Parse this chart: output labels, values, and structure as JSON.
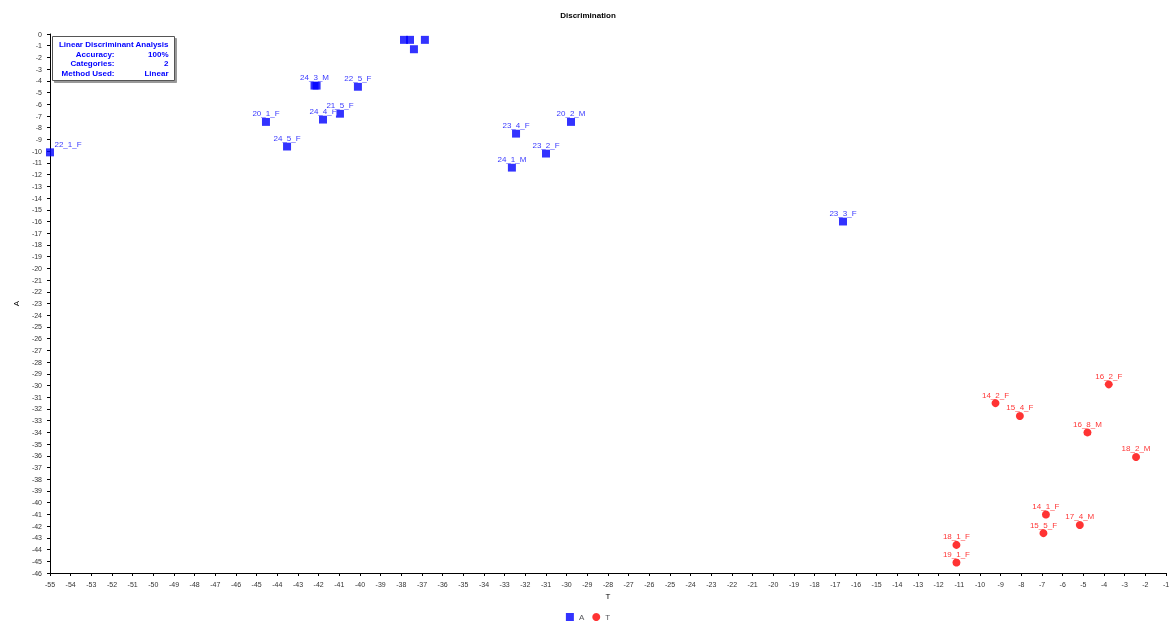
{
  "chart_data": {
    "type": "scatter",
    "title": "Discrimination",
    "xlabel": "T",
    "ylabel": "A",
    "xlim": [
      -55,
      -1
    ],
    "ylim": [
      -46,
      0
    ],
    "xticks": [
      -55,
      -54,
      -53,
      -52,
      -51,
      -50,
      -49,
      -48,
      -47,
      -46,
      -45,
      -44,
      -43,
      -42,
      -41,
      -40,
      -39,
      -38,
      -37,
      -36,
      -35,
      -34,
      -33,
      -32,
      -31,
      -30,
      -29,
      -28,
      -27,
      -26,
      -25,
      -24,
      -23,
      -22,
      -21,
      -20,
      -19,
      -18,
      -17,
      -16,
      -15,
      -14,
      -13,
      -12,
      -11,
      -10,
      -9,
      -8,
      -7,
      -6,
      -5,
      -4,
      -3,
      -2,
      -1
    ],
    "yticks": [
      0,
      -1,
      -2,
      -3,
      -4,
      -5,
      -6,
      -7,
      -8,
      -9,
      -10,
      -11,
      -12,
      -13,
      -14,
      -15,
      -16,
      -17,
      -18,
      -19,
      -20,
      -21,
      -22,
      -23,
      -24,
      -25,
      -26,
      -27,
      -28,
      -29,
      -30,
      -31,
      -32,
      -33,
      -34,
      -35,
      -36,
      -37,
      -38,
      -39,
      -40,
      -41,
      -42,
      -43,
      -44,
      -45,
      -46
    ],
    "grid": false,
    "legend": "bottom",
    "series": [
      {
        "name": "A",
        "color": "#0000ff",
        "marker": "square",
        "x": [
          -55,
          -44.55,
          -43.53,
          -42.2,
          -42.1,
          -40.1,
          -41.79,
          -40.97,
          -37.87,
          -37.58,
          -36.86,
          -37.39,
          -32.45,
          -29.79,
          -31.0,
          -32.65,
          -16.63
        ],
        "values": [
          -10.1,
          -7.5,
          -9.6,
          -4.4,
          -4.4,
          -4.5,
          -7.3,
          -6.8,
          -0.5,
          -0.5,
          -0.5,
          -1.3,
          -8.5,
          -7.5,
          -10.2,
          -11.4,
          -16.0
        ]
      },
      {
        "name": "T",
        "color": "#ff0000",
        "marker": "circle",
        "x": [
          -11.14,
          -11.14,
          -9.25,
          -8.07,
          -3.77,
          -4.8,
          -2.45,
          -6.81,
          -5.17,
          -6.93
        ],
        "values": [
          -43.6,
          -45.1,
          -31.5,
          -32.6,
          -29.9,
          -34.0,
          -36.1,
          -41.0,
          -41.9,
          -42.6
        ]
      }
    ],
    "annotations": [
      "Linear Discriminant Analysis",
      "Accuracy:",
      "100%",
      "Categories:",
      "2",
      "Method Used:",
      "Linear",
      {
        "text": "22_1_F",
        "x": -55,
        "y": -10.1
      },
      {
        "text": "20_1_F",
        "x": -44.55,
        "y": -7.5
      },
      {
        "text": "24_5_F",
        "x": -43.53,
        "y": -9.6
      },
      {
        "text": "24_3_M",
        "x": -42.2,
        "y": -4.4
      },
      {
        "text": "22_5_F",
        "x": -40.1,
        "y": -4.5
      },
      {
        "text": "24_4_F",
        "x": -41.79,
        "y": -7.3
      },
      {
        "text": "21_5_F",
        "x": -40.97,
        "y": -6.8
      },
      {
        "text": "23_4_F",
        "x": -32.45,
        "y": -8.5
      },
      {
        "text": "20_2_M",
        "x": -29.79,
        "y": -7.5
      },
      {
        "text": "23_2_F",
        "x": -31.0,
        "y": -10.2
      },
      {
        "text": "24_1_M",
        "x": -32.65,
        "y": -11.4
      },
      {
        "text": "23_3_F",
        "x": -16.63,
        "y": -16.0
      },
      {
        "text": "18_1_F",
        "x": -11.14,
        "y": -43.6
      },
      {
        "text": "19_1_F",
        "x": -11.14,
        "y": -45.1
      },
      {
        "text": "14_2_F",
        "x": -9.25,
        "y": -31.5
      },
      {
        "text": "15_4_F",
        "x": -8.07,
        "y": -32.6
      },
      {
        "text": "16_2_F",
        "x": -3.77,
        "y": -29.9
      },
      {
        "text": "16_8_M",
        "x": -4.8,
        "y": -34.0
      },
      {
        "text": "18_2_M",
        "x": -2.45,
        "y": -36.1
      },
      {
        "text": "14_1_F",
        "x": -6.81,
        "y": -41.0
      },
      {
        "text": "17_4_M",
        "x": -5.17,
        "y": -41.9
      },
      {
        "text": "15_5_F",
        "x": -6.93,
        "y": -42.6
      }
    ]
  }
}
